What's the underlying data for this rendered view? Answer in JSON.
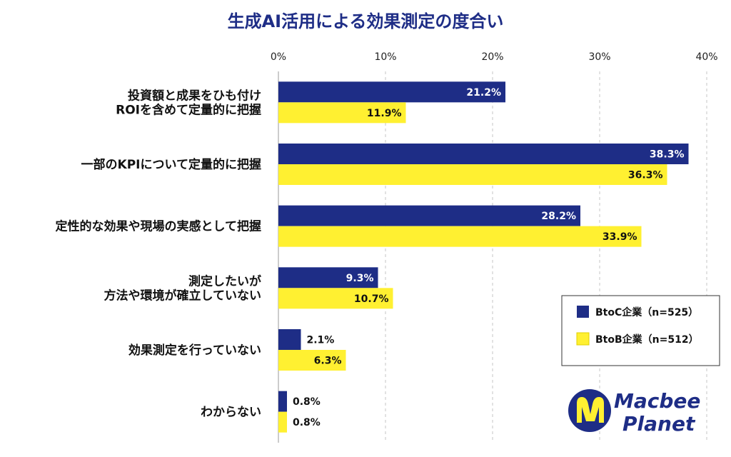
{
  "chart_data": {
    "type": "bar",
    "orientation": "horizontal",
    "title": "生成AI活用による効果測定の度合い",
    "categories": [
      [
        "投資額と成果をひも付け",
        "ROIを含めて定量的に把握"
      ],
      [
        "一部のKPIについて定量的に把握"
      ],
      [
        "定性的な効果や現場の実感として把握"
      ],
      [
        "測定したいが",
        "方法や環境が確立していない"
      ],
      [
        "効果測定を行っていない"
      ],
      [
        "わからない"
      ]
    ],
    "series": [
      {
        "name": "BtoC企業",
        "n_label": "（n=525）",
        "color": "#1e2d86",
        "values": [
          21.2,
          38.3,
          28.2,
          9.3,
          2.1,
          0.8
        ],
        "labels": [
          "21.2%",
          "38.3%",
          "28.2%",
          "9.3%",
          "2.1%",
          "0.8%"
        ]
      },
      {
        "name": "BtoB企業",
        "n_label": "（n=512）",
        "color": "#fff031",
        "values": [
          11.9,
          36.3,
          33.9,
          10.7,
          6.3,
          0.8
        ],
        "labels": [
          "11.9%",
          "36.3%",
          "33.9%",
          "10.7%",
          "6.3%",
          "0.8%"
        ]
      }
    ],
    "xlim": [
      0,
      40
    ],
    "ticks": [
      0,
      10,
      20,
      30,
      40
    ],
    "tick_labels": [
      "0%",
      "10%",
      "20%",
      "30%",
      "40%"
    ],
    "grid": true,
    "legend_position": "bottom-right"
  },
  "logo": {
    "line1": "Macbee",
    "line2": "Planet",
    "color": "#1e2d86",
    "accent": "#fff031"
  }
}
